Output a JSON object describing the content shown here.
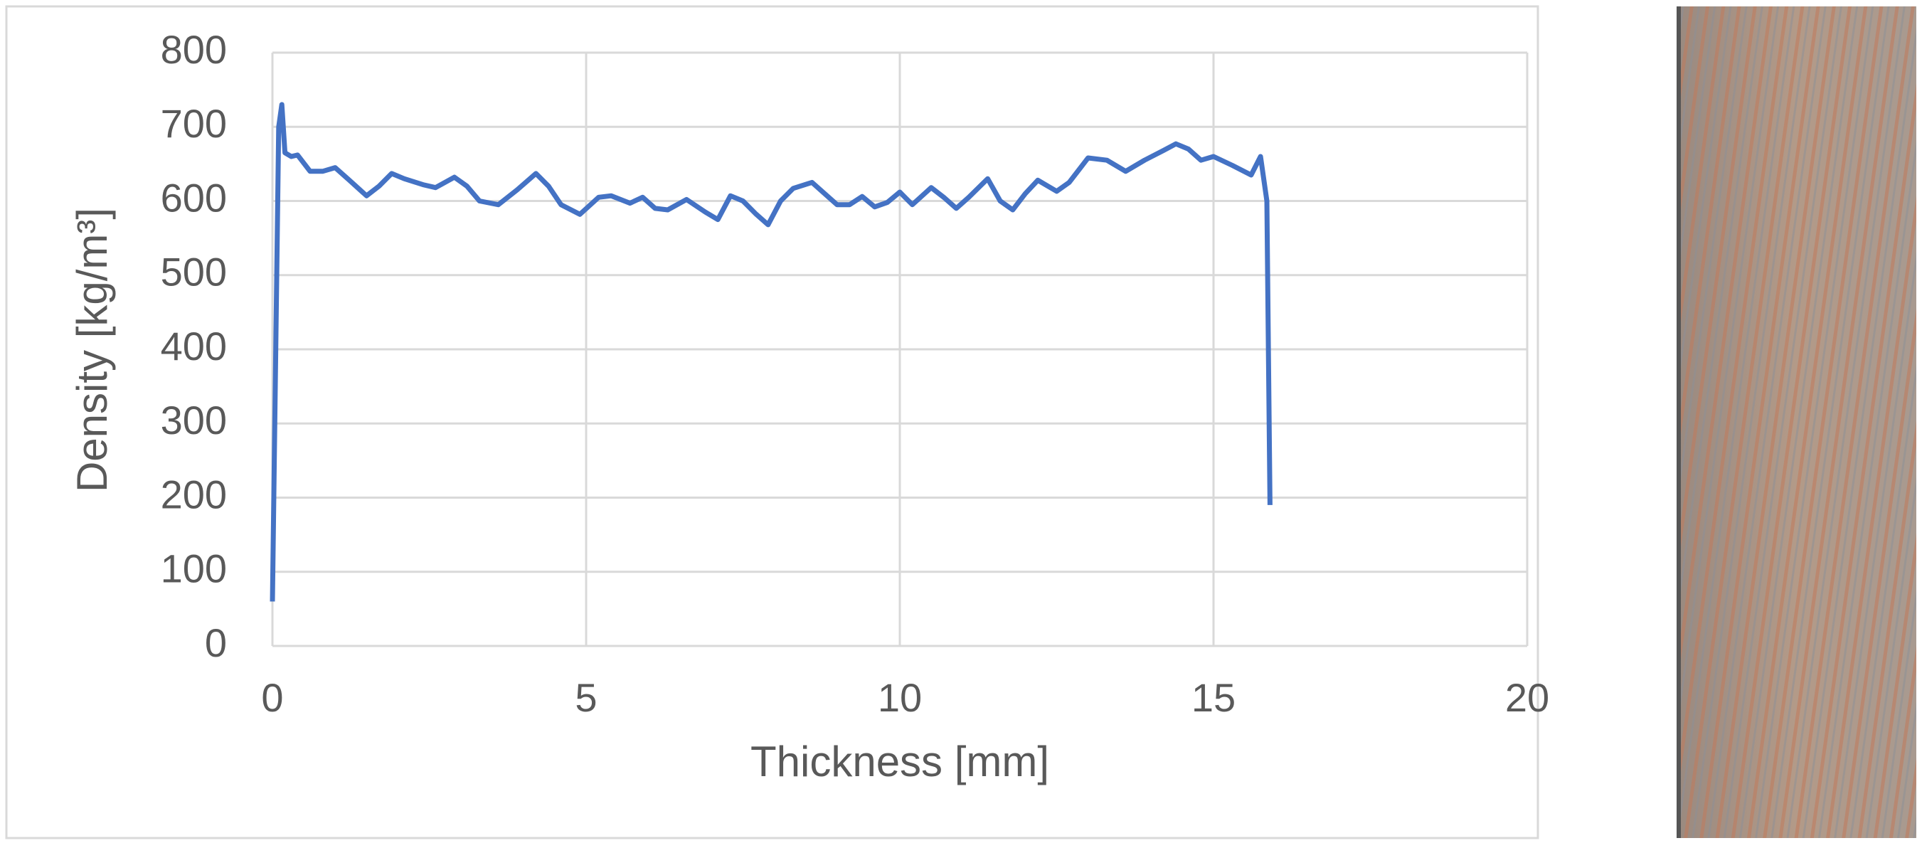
{
  "chart_data": {
    "type": "line",
    "xlabel": "Thickness [mm]",
    "ylabel": "Density [kg/m³]",
    "x": [
      0.0,
      0.1,
      0.15,
      0.2,
      0.3,
      0.4,
      0.6,
      0.8,
      1.0,
      1.2,
      1.5,
      1.7,
      1.9,
      2.1,
      2.4,
      2.6,
      2.9,
      3.1,
      3.3,
      3.6,
      3.9,
      4.2,
      4.4,
      4.6,
      4.9,
      5.2,
      5.4,
      5.7,
      5.9,
      6.1,
      6.3,
      6.6,
      6.9,
      7.1,
      7.3,
      7.5,
      7.7,
      7.9,
      8.1,
      8.3,
      8.6,
      8.8,
      9.0,
      9.2,
      9.4,
      9.6,
      9.8,
      10.0,
      10.2,
      10.5,
      10.7,
      10.9,
      11.1,
      11.4,
      11.6,
      11.8,
      12.0,
      12.2,
      12.5,
      12.7,
      13.0,
      13.3,
      13.6,
      13.9,
      14.2,
      14.4,
      14.6,
      14.8,
      15.0,
      15.3,
      15.6,
      15.75,
      15.85,
      15.9
    ],
    "values": [
      60,
      700,
      730,
      665,
      660,
      662,
      640,
      640,
      645,
      630,
      607,
      620,
      637,
      630,
      622,
      618,
      632,
      620,
      600,
      595,
      615,
      637,
      620,
      595,
      582,
      605,
      607,
      597,
      605,
      590,
      588,
      602,
      585,
      575,
      607,
      600,
      583,
      568,
      600,
      617,
      625,
      610,
      595,
      595,
      606,
      592,
      598,
      612,
      595,
      618,
      605,
      590,
      605,
      630,
      600,
      588,
      610,
      628,
      613,
      625,
      658,
      655,
      640,
      655,
      668,
      677,
      670,
      655,
      660,
      648,
      635,
      660,
      600,
      190
    ],
    "color": "#4472c4",
    "xlim": [
      0,
      20
    ],
    "xticks": [
      0,
      5,
      10,
      15,
      20
    ],
    "ylim": [
      0,
      800
    ],
    "yticks": [
      0,
      100,
      200,
      300,
      400,
      500,
      600,
      700,
      800
    ],
    "grid": true
  }
}
